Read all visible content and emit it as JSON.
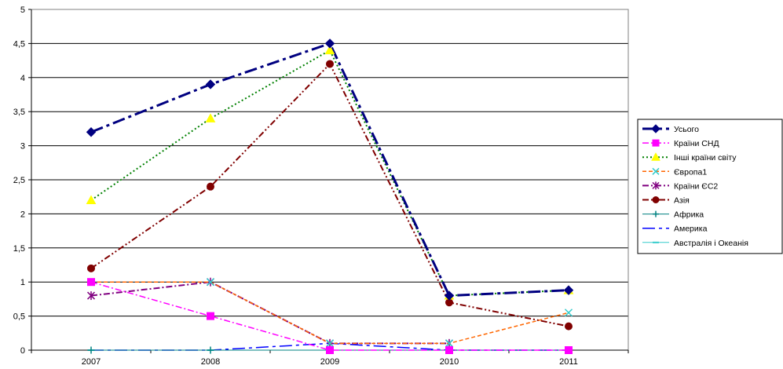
{
  "chart_data": {
    "type": "line",
    "categories": [
      "2007",
      "2008",
      "2009",
      "2010",
      "2011"
    ],
    "ylim": [
      0,
      5
    ],
    "yticks": [
      "0",
      "0,5",
      "1",
      "1,5",
      "2",
      "2,5",
      "3",
      "3,5",
      "4",
      "4,5",
      "5"
    ],
    "grid": true,
    "legend_position": "right",
    "series": [
      {
        "name": "Усього",
        "values": [
          3.2,
          3.9,
          4.5,
          0.8,
          0.88
        ],
        "color": "#000080",
        "marker": "diamond",
        "dash": "long-dash-dot",
        "width": 3
      },
      {
        "name": "Країни СНД",
        "values": [
          1.0,
          0.5,
          0.0,
          0.0,
          0.0
        ],
        "color": "#FF00FF",
        "marker": "square",
        "dash": "dash-dot",
        "width": 1.5
      },
      {
        "name": "Інші країни світу",
        "values": [
          2.2,
          3.4,
          4.4,
          0.8,
          0.88
        ],
        "color": "#008000",
        "marker": "triangle",
        "marker_color": "#FFFF00",
        "dash": "dot",
        "width": 2
      },
      {
        "name": "Європа1",
        "values": [
          1.0,
          1.0,
          0.1,
          0.1,
          0.55
        ],
        "color": "#FF6600",
        "marker": "x",
        "marker_color": "#33CCCC",
        "dash": "dash",
        "width": 1.5
      },
      {
        "name": "Країни ЄС2",
        "values": [
          0.8,
          1.0,
          0.1,
          0.1,
          null
        ],
        "color": "#800080",
        "marker": "star",
        "dash": "dash-dot",
        "width": 2
      },
      {
        "name": "Азія",
        "values": [
          1.2,
          2.4,
          4.2,
          0.7,
          0.35
        ],
        "color": "#800000",
        "marker": "circle",
        "dash": "dash-dot-dot",
        "width": 2
      },
      {
        "name": "Африка",
        "values": [
          0.0,
          0.0,
          0.0,
          0.0,
          0.0
        ],
        "color": "#008080",
        "marker": "plus",
        "dash": "solid",
        "width": 1
      },
      {
        "name": "Америка",
        "values": [
          0.0,
          0.0,
          0.1,
          0.0,
          0.0
        ],
        "color": "#0000FF",
        "marker": "none",
        "dash": "long-dash-dot",
        "width": 1.5
      },
      {
        "name": "Австралія і Океанія",
        "values": [
          0.0,
          0.0,
          0.0,
          0.0,
          0.0
        ],
        "color": "#33CCCC",
        "marker": "minus",
        "dash": "solid",
        "width": 1
      }
    ]
  }
}
